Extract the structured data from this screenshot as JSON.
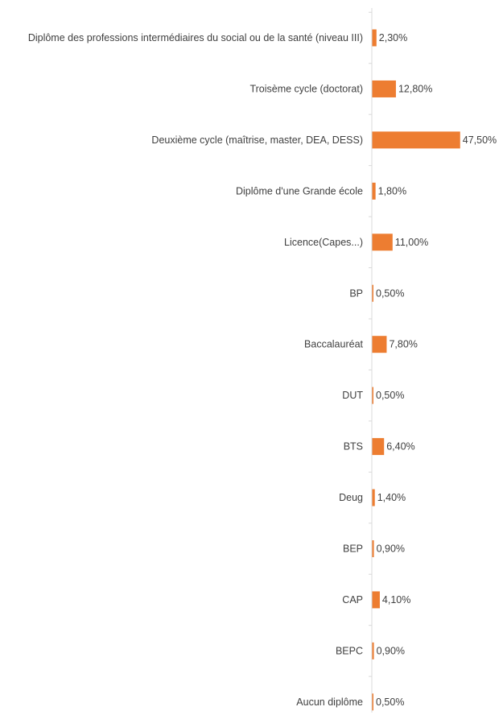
{
  "chart_data": {
    "type": "bar",
    "orientation": "horizontal",
    "title": "",
    "xlabel": "",
    "ylabel": "",
    "categories": [
      "Diplôme des professions intermédiaires du social ou de la santé (niveau III)",
      "Troisème cycle (doctorat)",
      "Deuxième cycle (maîtrise, master, DEA, DESS)",
      "Diplôme d'une Grande école",
      "Licence(Capes...)",
      "BP",
      "Baccalauréat",
      "DUT",
      "BTS",
      "Deug",
      "BEP",
      "CAP",
      "BEPC",
      "Aucun diplôme"
    ],
    "values": [
      2.3,
      12.8,
      47.5,
      1.8,
      11.0,
      0.5,
      7.8,
      0.5,
      6.4,
      1.4,
      0.9,
      4.1,
      0.9,
      0.5
    ],
    "value_labels": [
      "2,30%",
      "12,80%",
      "47,50%",
      "1,80%",
      "11,00%",
      "0,50%",
      "7,80%",
      "0,50%",
      "6,40%",
      "1,40%",
      "0,90%",
      "4,10%",
      "0,90%",
      "0,50%"
    ],
    "xlim": [
      0,
      50
    ],
    "grid": false,
    "legend": "none",
    "bar_color": "#ED7D31",
    "axis_color": "#D9D9D9",
    "text_color": "#404040"
  }
}
